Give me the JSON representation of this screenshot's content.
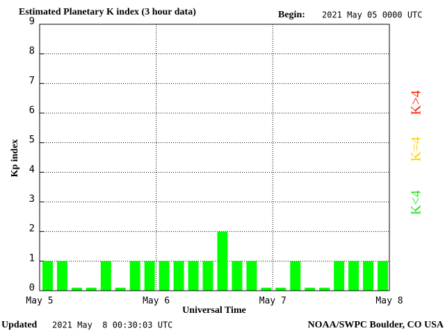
{
  "chart_data": {
    "type": "bar",
    "title": "Estimated Planetary K index (3 hour data)",
    "begin_label": "Begin:",
    "begin_value": "2021 May 05 0000 UTC",
    "xlabel": "Universal Time",
    "ylabel": "Kp index",
    "categories": [
      null,
      null,
      null,
      null,
      null,
      null,
      null,
      null,
      null,
      null,
      null,
      null,
      null,
      null,
      null,
      null,
      null,
      null,
      null,
      null,
      null,
      null,
      null,
      null
    ],
    "values": [
      1,
      1,
      0.1,
      0.1,
      1,
      0.1,
      1,
      1,
      1,
      1,
      1,
      1,
      2,
      1,
      1,
      0.1,
      0.1,
      1,
      0.1,
      0.1,
      1,
      1,
      1,
      1
    ],
    "color": "#00ff00",
    "xlim": [
      0,
      24
    ],
    "xticks": [
      {
        "value": 0,
        "label": "May 5"
      },
      {
        "value": 8,
        "label": "May 6"
      },
      {
        "value": 16,
        "label": "May 7"
      },
      {
        "value": 24,
        "label": "May 8"
      }
    ],
    "ylim": [
      0,
      9
    ],
    "yticks": [
      0,
      1,
      2,
      3,
      4,
      5,
      6,
      7,
      8,
      9
    ],
    "grid": true,
    "legend": [
      {
        "label": "K>4",
        "color": "#ff2000"
      },
      {
        "label": "K=4",
        "color": "#ffd000"
      },
      {
        "label": "K<4",
        "color": "#20e020"
      }
    ],
    "updated_label": "Updated",
    "updated_value": "2021 May  8 00:30:03 UTC",
    "credit": "NOAA/SWPC Boulder, CO USA"
  }
}
